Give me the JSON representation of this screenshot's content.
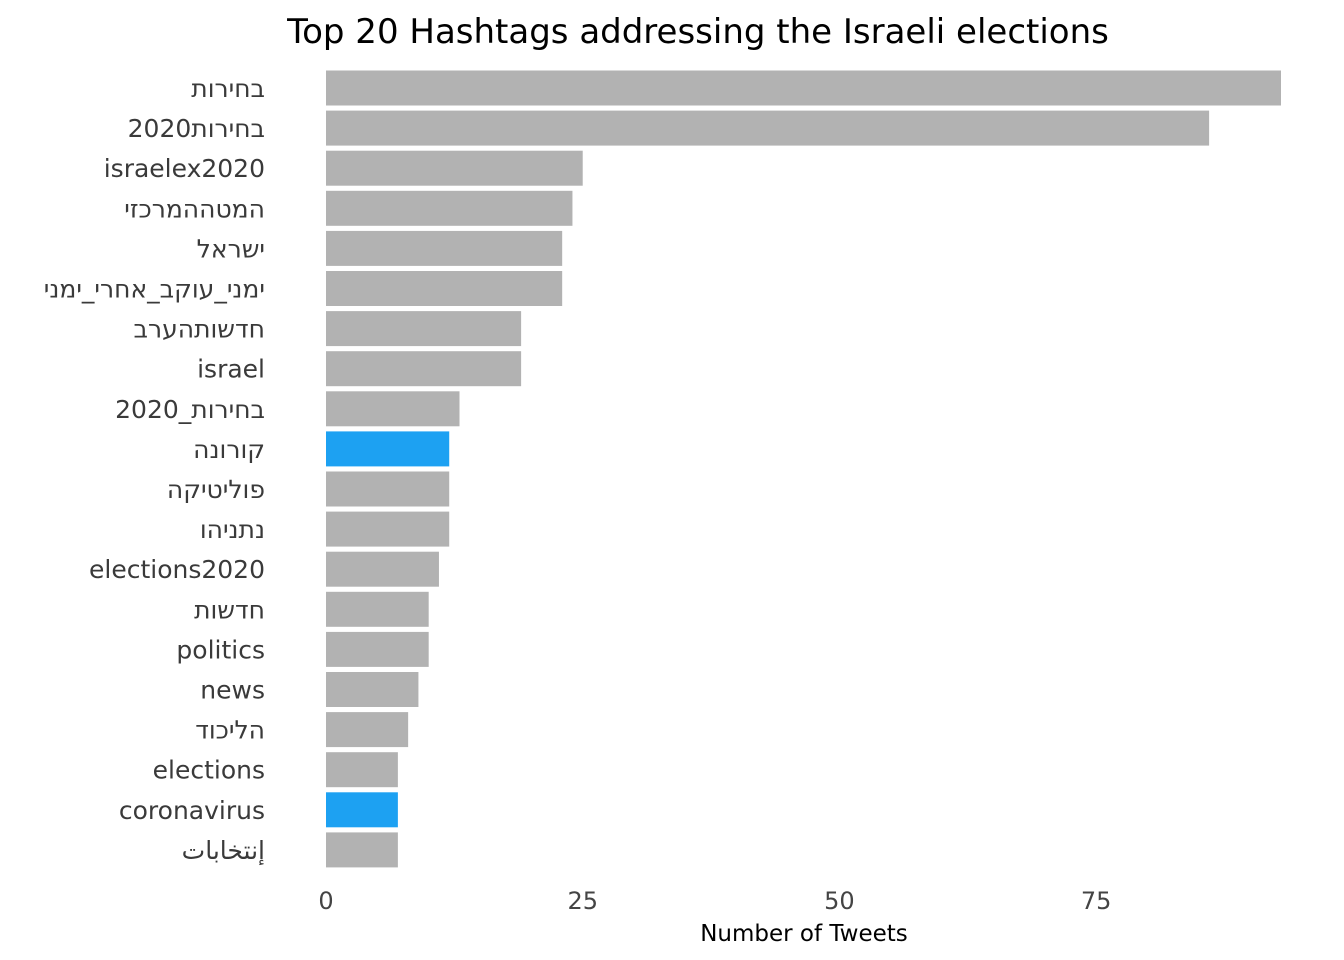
{
  "chart_data": {
    "type": "bar",
    "orientation": "horizontal",
    "title": "Top 20 Hashtags addressing the Israeli elections",
    "xlabel": "Number of Tweets",
    "ylabel": "",
    "xlim": [
      0,
      93
    ],
    "xticks": [
      0,
      25,
      50,
      75
    ],
    "grid": false,
    "legend": "none",
    "categories": [
      "בחירות",
      "בחירות2020",
      "israelex2020",
      "המטההמרכזי",
      "ישראל",
      "ימני_עוקב_אחרי_ימני",
      "חדשותהערב",
      "israel",
      "בחירות_2020",
      "קורונה",
      "פוליטיקה",
      "נתניהו",
      "elections2020",
      "חדשות",
      "politics",
      "news",
      "הליכוד",
      "elections",
      "coronavirus",
      "إنتخابات"
    ],
    "values": [
      93,
      86,
      25,
      24,
      23,
      23,
      19,
      19,
      13,
      12,
      12,
      12,
      11,
      10,
      10,
      9,
      8,
      7,
      7,
      7
    ],
    "highlighted": [
      "קורונה",
      "coronavirus"
    ],
    "colors": {
      "default_bar": "#b2b2b2",
      "highlight_bar": "#1da1f2"
    }
  }
}
